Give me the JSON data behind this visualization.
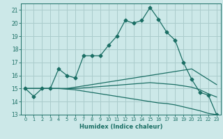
{
  "title": "",
  "xlabel": "Humidex (Indice chaleur)",
  "x": [
    0,
    1,
    2,
    3,
    4,
    5,
    6,
    7,
    8,
    9,
    10,
    11,
    12,
    13,
    14,
    15,
    16,
    17,
    18,
    19,
    20,
    21,
    22,
    23
  ],
  "line1": [
    15,
    14.4,
    15,
    15,
    16.5,
    16,
    15.8,
    17.5,
    17.5,
    17.5,
    18.3,
    19,
    20.2,
    20,
    20.2,
    21.2,
    20.3,
    19.3,
    18.7,
    17,
    15.7,
    14.7,
    14.5,
    13
  ],
  "line2": [
    15,
    15,
    15,
    15,
    15,
    15.0,
    15.1,
    15.2,
    15.3,
    15.4,
    15.5,
    15.6,
    15.7,
    15.8,
    15.9,
    16.0,
    16.1,
    16.2,
    16.3,
    16.4,
    16.5,
    16.1,
    15.7,
    15.3
  ],
  "line3": [
    15,
    15,
    15,
    15,
    15,
    15.0,
    15.0,
    15.05,
    15.1,
    15.15,
    15.2,
    15.25,
    15.3,
    15.35,
    15.4,
    15.45,
    15.4,
    15.35,
    15.3,
    15.2,
    15.1,
    14.9,
    14.6,
    14.35
  ],
  "line4": [
    15,
    15,
    15,
    15,
    15,
    14.95,
    14.9,
    14.8,
    14.7,
    14.6,
    14.5,
    14.4,
    14.3,
    14.2,
    14.1,
    14.0,
    13.9,
    13.85,
    13.75,
    13.6,
    13.45,
    13.3,
    13.1,
    13.0
  ],
  "bg_color": "#cce8e8",
  "grid_color": "#aacccc",
  "line_color": "#1a6e64",
  "line_width": 0.9,
  "marker": "D",
  "marker_size": 2.5,
  "ylim": [
    13,
    21.5
  ],
  "yticks": [
    13,
    14,
    15,
    16,
    17,
    18,
    19,
    20,
    21
  ],
  "xlim": [
    -0.5,
    23.5
  ],
  "xticks": [
    0,
    1,
    2,
    3,
    4,
    5,
    6,
    7,
    8,
    9,
    10,
    11,
    12,
    13,
    14,
    15,
    16,
    17,
    18,
    19,
    20,
    21,
    22,
    23
  ],
  "xlabel_fontsize": 6.0,
  "tick_fontsize": 5.5,
  "xtick_fontsize": 4.8
}
